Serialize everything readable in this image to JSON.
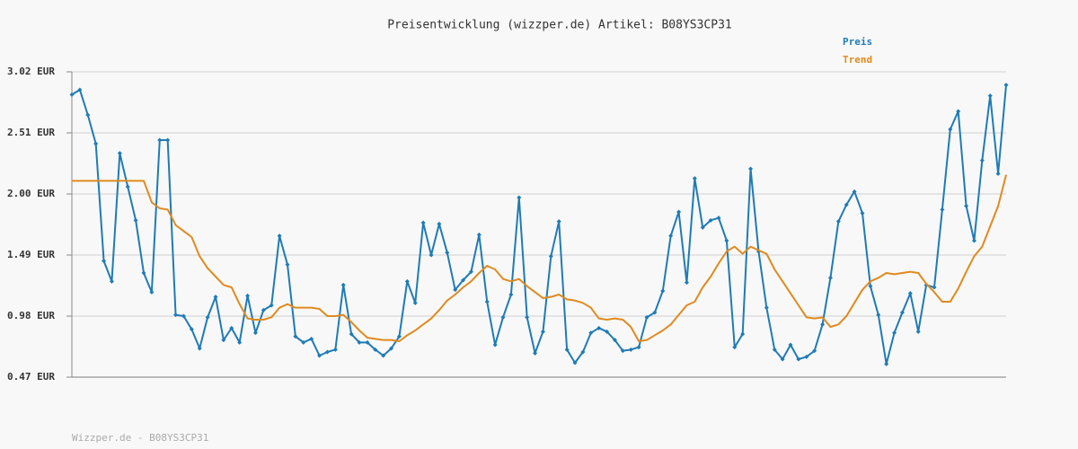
{
  "chart_data": {
    "type": "line",
    "title": "Preisentwicklung (wizzper.de) Artikel: B08YS3CP31",
    "footer": "Wizzper.de - B08YS3CP31",
    "legend": "top-right",
    "grid": true,
    "ylim": [
      0.47,
      3.02
    ],
    "yticks": [
      {
        "value": 0.47,
        "label": "0.47 EUR"
      },
      {
        "value": 0.98,
        "label": "0.98 EUR"
      },
      {
        "value": 1.49,
        "label": "1.49 EUR"
      },
      {
        "value": 2.0,
        "label": "2.00 EUR"
      },
      {
        "value": 2.51,
        "label": "2.51 EUR"
      },
      {
        "value": 3.02,
        "label": "3.02 EUR"
      }
    ],
    "series": [
      {
        "name": "Preis",
        "color": "#1f7bb5",
        "markers": true,
        "values": [
          2.83,
          2.87,
          2.66,
          2.42,
          1.44,
          1.27,
          2.34,
          2.06,
          1.78,
          1.34,
          1.18,
          2.45,
          2.45,
          0.99,
          0.98,
          0.87,
          0.71,
          0.97,
          1.14,
          0.78,
          0.88,
          0.76,
          1.15,
          0.84,
          1.03,
          1.07,
          1.65,
          1.41,
          0.81,
          0.76,
          0.79,
          0.65,
          0.68,
          0.7,
          1.24,
          0.83,
          0.76,
          0.76,
          0.7,
          0.65,
          0.71,
          0.81,
          1.27,
          1.09,
          1.76,
          1.49,
          1.75,
          1.51,
          1.2,
          1.28,
          1.35,
          1.66,
          1.1,
          0.74,
          0.97,
          1.16,
          1.97,
          0.97,
          0.67,
          0.85,
          1.48,
          1.77,
          0.7,
          0.59,
          0.68,
          0.84,
          0.88,
          0.85,
          0.78,
          0.69,
          0.7,
          0.72,
          0.97,
          1.01,
          1.19,
          1.65,
          1.85,
          1.26,
          2.13,
          1.72,
          1.78,
          1.8,
          1.61,
          0.72,
          0.83,
          2.21,
          1.52,
          1.05,
          0.7,
          0.62,
          0.74,
          0.62,
          0.64,
          0.69,
          0.91,
          1.3,
          1.77,
          1.91,
          2.02,
          1.84,
          1.23,
          0.99,
          0.58,
          0.84,
          1.01,
          1.17,
          0.85,
          1.24,
          1.22,
          1.87,
          2.54,
          2.69,
          1.9,
          1.61,
          2.28,
          2.82,
          2.17,
          2.91
        ]
      },
      {
        "name": "Trend",
        "color": "#e08a1e",
        "markers": false,
        "values": [
          2.11,
          2.11,
          2.11,
          2.11,
          2.11,
          2.11,
          2.11,
          2.11,
          2.11,
          2.11,
          1.93,
          1.88,
          1.87,
          1.74,
          1.69,
          1.64,
          1.48,
          1.38,
          1.31,
          1.24,
          1.22,
          1.08,
          0.96,
          0.95,
          0.95,
          0.97,
          1.05,
          1.08,
          1.05,
          1.05,
          1.05,
          1.04,
          0.98,
          0.98,
          0.99,
          0.93,
          0.86,
          0.8,
          0.79,
          0.78,
          0.78,
          0.77,
          0.82,
          0.86,
          0.91,
          0.96,
          1.03,
          1.11,
          1.16,
          1.22,
          1.27,
          1.34,
          1.4,
          1.37,
          1.29,
          1.27,
          1.29,
          1.23,
          1.18,
          1.13,
          1.14,
          1.16,
          1.12,
          1.11,
          1.09,
          1.05,
          0.96,
          0.95,
          0.96,
          0.95,
          0.89,
          0.77,
          0.78,
          0.82,
          0.86,
          0.91,
          0.99,
          1.07,
          1.1,
          1.22,
          1.31,
          1.42,
          1.52,
          1.56,
          1.5,
          1.56,
          1.53,
          1.5,
          1.37,
          1.27,
          1.17,
          1.07,
          0.97,
          0.96,
          0.97,
          0.89,
          0.91,
          0.98,
          1.09,
          1.2,
          1.27,
          1.3,
          1.34,
          1.33,
          1.34,
          1.35,
          1.34,
          1.25,
          1.18,
          1.1,
          1.1,
          1.21,
          1.35,
          1.48,
          1.56,
          1.73,
          1.9,
          2.16
        ]
      }
    ]
  }
}
